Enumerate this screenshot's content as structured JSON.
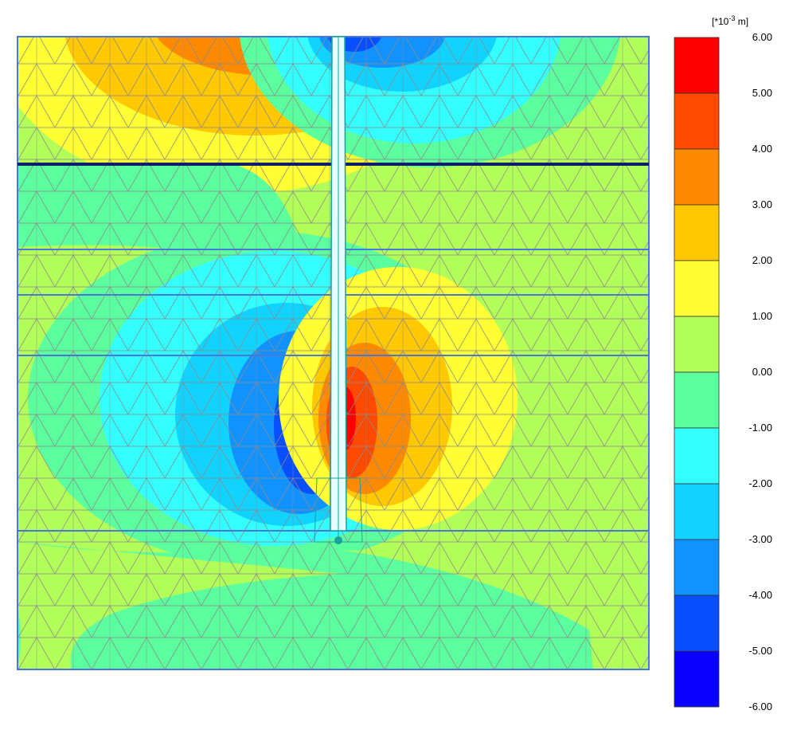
{
  "legend": {
    "unit_prefix": "[*10",
    "unit_exponent": "-3",
    "unit_suffix": " m]",
    "tick_labels": [
      "6.00",
      "5.00",
      "4.00",
      "3.00",
      "2.00",
      "1.00",
      "0.00",
      "-1.00",
      "-2.00",
      "-3.00",
      "-4.00",
      "-5.00",
      "-6.00"
    ],
    "band_colors": [
      "#ff0000",
      "#ff4a00",
      "#ff8a00",
      "#ffc800",
      "#ffff33",
      "#b3ff5a",
      "#5cff9e",
      "#33ffff",
      "#12d2ff",
      "#1292ff",
      "#0a4fff",
      "#0a00ff"
    ]
  },
  "colors": {
    "boundary": "#4a78d8",
    "mesh": "#8a8a8a",
    "anchor_line": "#0d1f6b",
    "pile": "#1aa0a0"
  }
}
